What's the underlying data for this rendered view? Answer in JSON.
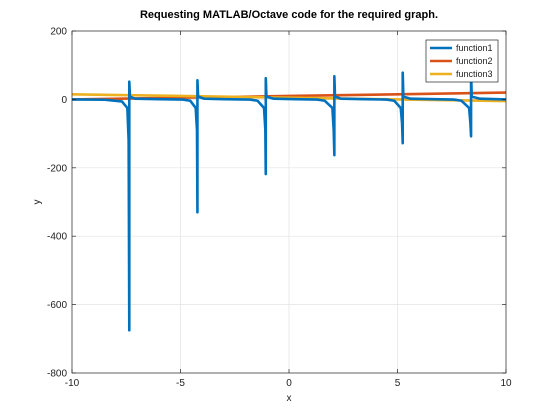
{
  "chart_data": {
    "type": "line",
    "title": "Requesting MATLAB/Octave code for the required graph.",
    "xlabel": "x",
    "ylabel": "y",
    "xlim": [
      -10,
      10
    ],
    "ylim": [
      -800,
      200
    ],
    "x_ticks": [
      -10,
      -5,
      0,
      5,
      10
    ],
    "y_ticks": [
      -800,
      -600,
      -400,
      -200,
      0,
      200
    ],
    "x_tick_labels": [
      "-10",
      "-5",
      "0",
      "5",
      "10"
    ],
    "y_tick_labels": [
      "-800",
      "-600",
      "-400",
      "-200",
      "0",
      "200"
    ],
    "grid": true,
    "legend_position": "top-right",
    "series": [
      {
        "name": "function1",
        "color": "#0072BD",
        "points": [
          [
            -10,
            0
          ],
          [
            -8.5,
            -1
          ],
          [
            -7.7,
            -6
          ],
          [
            -7.45,
            -25
          ],
          [
            -7.39,
            -120
          ],
          [
            -7.36,
            -675
          ],
          [
            -7.36,
            52
          ],
          [
            -7.33,
            8
          ],
          [
            -7.1,
            2
          ],
          [
            -6.0,
            0.5
          ],
          [
            -4.9,
            -0.5
          ],
          [
            -4.55,
            -4
          ],
          [
            -4.3,
            -25
          ],
          [
            -4.24,
            -90
          ],
          [
            -4.22,
            -330
          ],
          [
            -4.22,
            56
          ],
          [
            -4.19,
            8
          ],
          [
            -3.9,
            2
          ],
          [
            -3.0,
            0.5
          ],
          [
            -1.8,
            -0.5
          ],
          [
            -1.45,
            -4
          ],
          [
            -1.15,
            -25
          ],
          [
            -1.09,
            -90
          ],
          [
            -1.07,
            -218
          ],
          [
            -1.07,
            62
          ],
          [
            -1.04,
            8
          ],
          [
            -0.7,
            2
          ],
          [
            0.3,
            0.5
          ],
          [
            1.3,
            -0.5
          ],
          [
            1.65,
            -4
          ],
          [
            2.0,
            -25
          ],
          [
            2.06,
            -90
          ],
          [
            2.09,
            -163
          ],
          [
            2.09,
            68
          ],
          [
            2.12,
            8
          ],
          [
            2.4,
            2
          ],
          [
            3.5,
            0.5
          ],
          [
            4.5,
            -0.5
          ],
          [
            4.85,
            -4
          ],
          [
            5.15,
            -25
          ],
          [
            5.21,
            -70
          ],
          [
            5.24,
            -128
          ],
          [
            5.24,
            78
          ],
          [
            5.27,
            8
          ],
          [
            5.6,
            2
          ],
          [
            6.7,
            0.5
          ],
          [
            7.6,
            -0.5
          ],
          [
            7.95,
            -4
          ],
          [
            8.3,
            -25
          ],
          [
            8.36,
            -70
          ],
          [
            8.39,
            -108
          ],
          [
            8.39,
            82
          ],
          [
            8.42,
            8
          ],
          [
            8.8,
            2
          ],
          [
            10,
            0
          ]
        ]
      },
      {
        "name": "function2",
        "color": "#D95319",
        "points": [
          [
            -10,
            0
          ],
          [
            -5,
            5
          ],
          [
            0,
            10
          ],
          [
            5,
            15
          ],
          [
            10,
            20
          ]
        ]
      },
      {
        "name": "function3",
        "color": "#EDB120",
        "points": [
          [
            -10,
            15
          ],
          [
            -5,
            10
          ],
          [
            0,
            5
          ],
          [
            5,
            0
          ],
          [
            10,
            -5
          ]
        ]
      }
    ]
  }
}
